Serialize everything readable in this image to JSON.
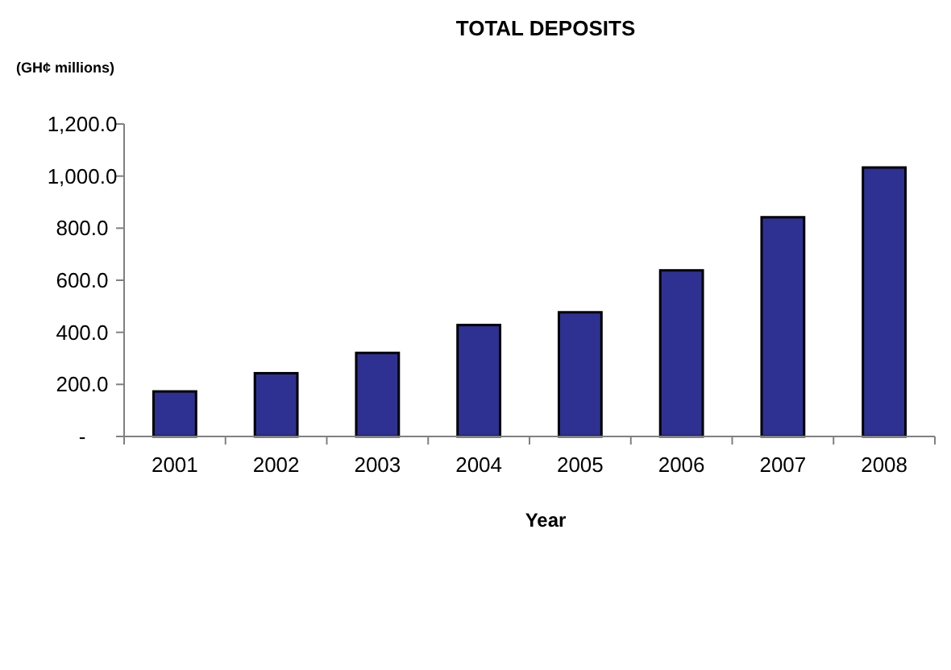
{
  "chart_data": {
    "type": "bar",
    "title": "TOTAL DEPOSITS",
    "ylabel": "(GH¢ millions)",
    "xlabel": "Year",
    "categories": [
      "2001",
      "2002",
      "2003",
      "2004",
      "2005",
      "2006",
      "2007",
      "2008"
    ],
    "values": [
      173,
      243,
      321,
      428,
      477,
      638,
      842,
      1033
    ],
    "color": "#2e3192",
    "ylim": [
      0,
      1200
    ],
    "yticks": [
      {
        "value": 0,
        "label": "-"
      },
      {
        "value": 200,
        "label": "200.0"
      },
      {
        "value": 400,
        "label": "400.0"
      },
      {
        "value": 600,
        "label": "600.0"
      },
      {
        "value": 800,
        "label": "800.0"
      },
      {
        "value": 1000,
        "label": "1,000.0"
      },
      {
        "value": 1200,
        "label": "1,200.0"
      }
    ],
    "grid": false
  }
}
